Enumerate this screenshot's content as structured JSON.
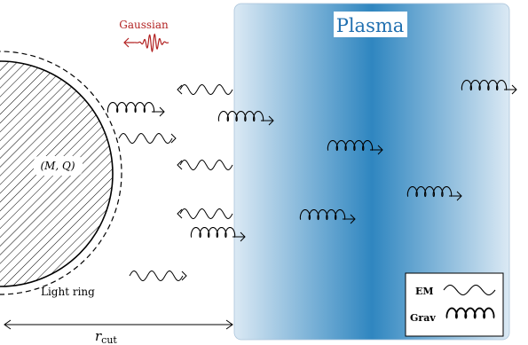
{
  "labels": {
    "plasma": "Plasma",
    "gaussian": "Gaussian",
    "bh": "(M, Q)",
    "light_ring": "Light ring",
    "r_cut_main": "r",
    "r_cut_sub": "cut"
  },
  "legend": {
    "em": "EM",
    "grav": "Grav"
  },
  "colors": {
    "gaussian": "#b22222",
    "plasma_title": "#1f6fb0",
    "plasma_edge": "#dbe9f4",
    "plasma_core": "#2f86c0"
  },
  "icons": {
    "em": "wavy-arrow",
    "grav": "coil-arrow"
  }
}
